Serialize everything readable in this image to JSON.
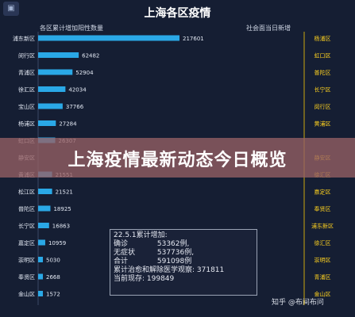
{
  "header": {
    "title": "上海各区疫情",
    "corner_icon": "image-icon"
  },
  "chart_data": {
    "type": "bar",
    "title": "上海各区疫情",
    "left_series_title": "各区累计增加阳性数量",
    "right_list_title": "社会面当日新增",
    "categories": [
      "浦东新区",
      "闵行区",
      "青浦区",
      "徐汇区",
      "宝山区",
      "杨浦区",
      "虹口区",
      "静安区",
      "黄浦区",
      "松江区",
      "普陀区",
      "长宁区",
      "嘉定区",
      "崇明区",
      "奉贤区",
      "金山区"
    ],
    "series": [
      {
        "values": [
          217601,
          62482,
          52904,
          42034,
          37766,
          27284,
          26307,
          null,
          21551,
          21521,
          18925,
          16863,
          10959,
          5030,
          2668,
          1572
        ]
      }
    ],
    "value_labels": [
      "217601",
      "62482",
      "52904",
      "42034",
      "37766",
      "27284",
      "26307",
      "",
      "21551",
      "21521",
      "18925",
      "16863",
      "10959",
      "5030",
      "2668",
      "1572"
    ],
    "right_list": [
      "杨浦区",
      "虹口区",
      "普陀区",
      "长宁区",
      "闵行区",
      "黄浦区",
      "",
      "静安区",
      "徐汇区",
      "嘉定区",
      "奉贤区",
      "浦东新区",
      "徐汇区",
      "崇明区",
      "青浦区",
      "金山区"
    ],
    "bar_color": "#2aa8e6",
    "tag_color": "#ffd21f"
  },
  "banner": {
    "text": "上海疫情最新动态今日概览"
  },
  "stats_box": {
    "heading": "22.5.1累计增加:",
    "rows": [
      {
        "label": "确诊",
        "value": "53362例,"
      },
      {
        "label": "无症状",
        "value": "537736例,"
      },
      {
        "label": "合计",
        "value": "591098例"
      }
    ],
    "recovered": "累计治愈和解除医学观察: 371811",
    "current": "当前现存: 199849"
  },
  "watermark": "知乎 @布间布问"
}
